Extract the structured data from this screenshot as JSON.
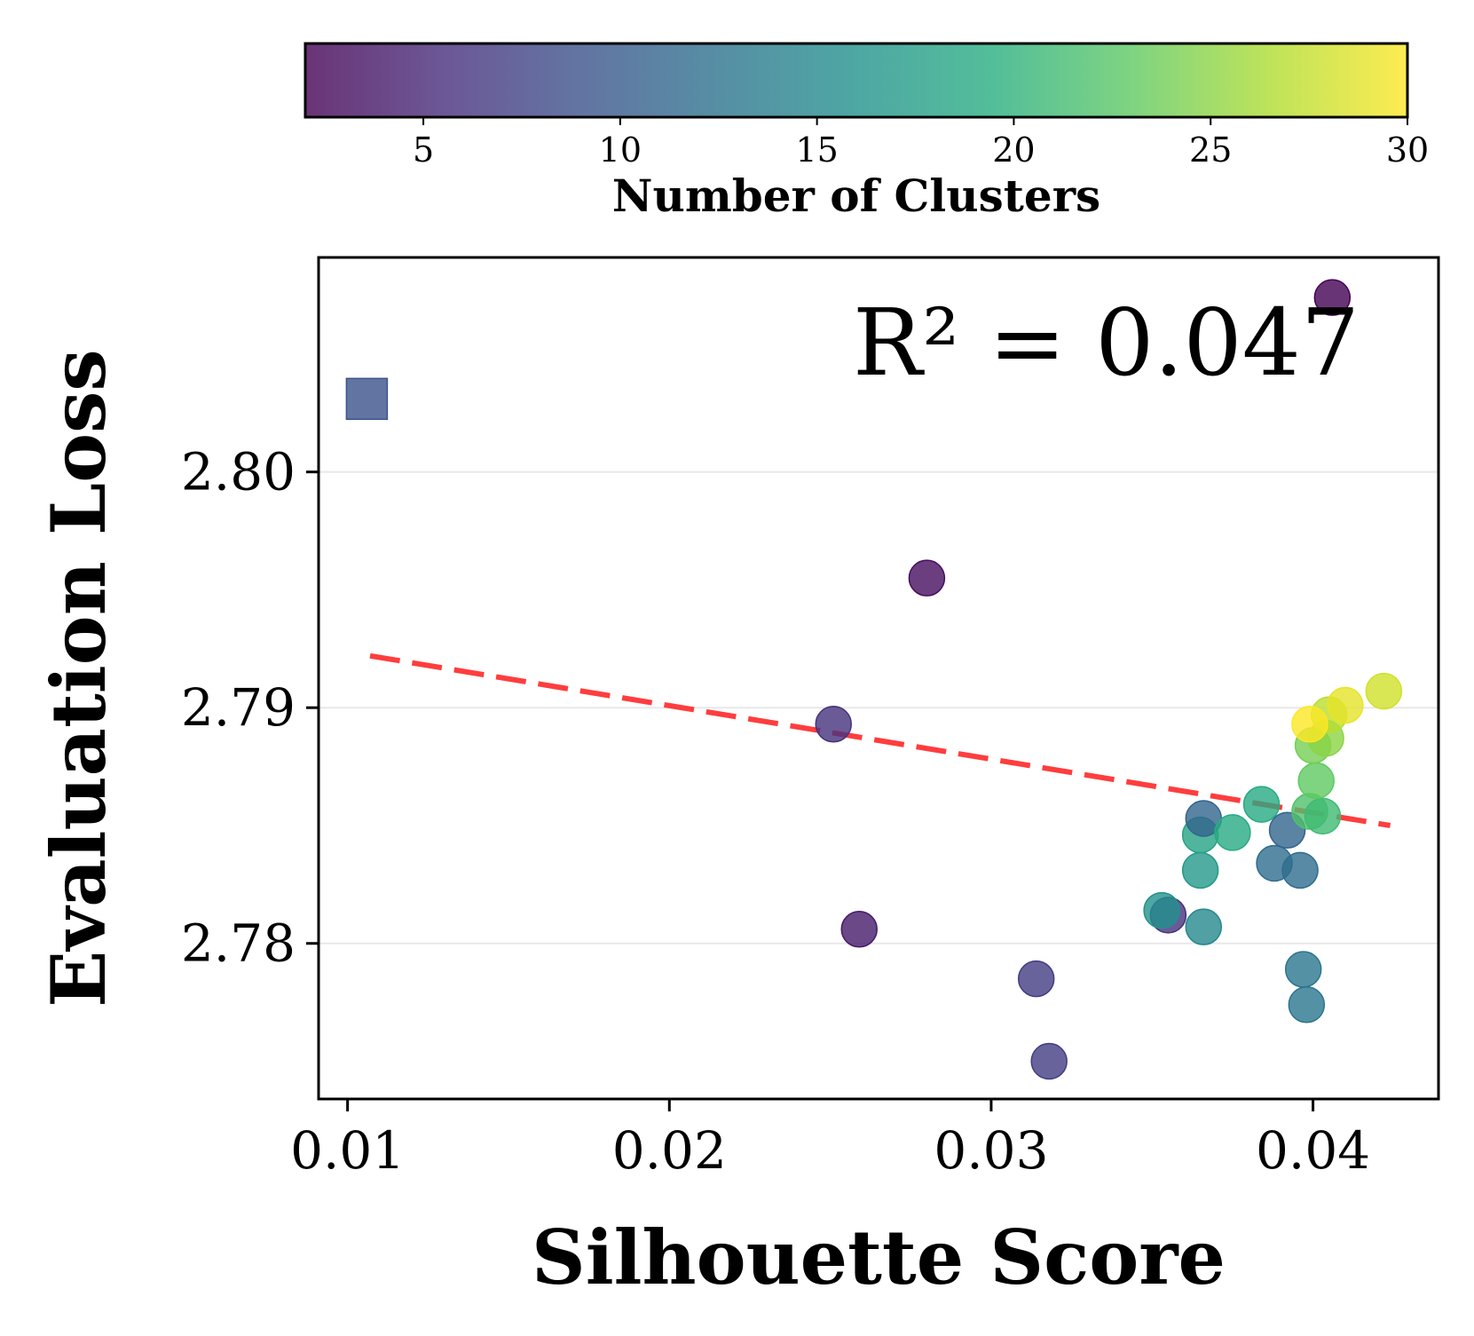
{
  "chart_data": {
    "type": "scatter",
    "title": "",
    "xlabel": "Silhouette Score",
    "ylabel": "Evaluation Loss",
    "xlim": [
      0.0091,
      0.0439
    ],
    "ylim": [
      2.7734,
      2.8091
    ],
    "xticks": [
      0.01,
      0.02,
      0.03,
      0.04
    ],
    "xtick_labels": [
      "0.01",
      "0.02",
      "0.03",
      "0.04"
    ],
    "yticks": [
      2.78,
      2.79,
      2.8
    ],
    "ytick_labels": [
      "2.78",
      "2.79",
      "2.80"
    ],
    "grid": "horizontal",
    "annotation": "R² = 0.047",
    "colorbar": {
      "label": "Number of Clusters",
      "range": [
        2,
        30
      ],
      "ticks": [
        5,
        10,
        15,
        20,
        25,
        30
      ],
      "tick_labels": [
        "5",
        "10",
        "15",
        "20",
        "25",
        "30"
      ],
      "colormap": "viridis",
      "placement": "top"
    },
    "trend_line": {
      "style": "dashed",
      "color": "#ff3333",
      "x": [
        0.0107,
        0.0424
      ],
      "y": [
        2.7922,
        2.785
      ]
    },
    "outlier_marker": {
      "shape": "square",
      "x": 0.0106,
      "y": 2.8031,
      "clusters": 9
    },
    "points": [
      {
        "x": 0.0406,
        "y": 2.8074,
        "clusters": 2
      },
      {
        "x": 0.028,
        "y": 2.7955,
        "clusters": 3
      },
      {
        "x": 0.0251,
        "y": 2.7893,
        "clusters": 6
      },
      {
        "x": 0.0259,
        "y": 2.7806,
        "clusters": 4
      },
      {
        "x": 0.0314,
        "y": 2.7785,
        "clusters": 7
      },
      {
        "x": 0.0318,
        "y": 2.775,
        "clusters": 7
      },
      {
        "x": 0.0355,
        "y": 2.7812,
        "clusters": 6
      },
      {
        "x": 0.0353,
        "y": 2.7814,
        "clusters": 16
      },
      {
        "x": 0.0366,
        "y": 2.7807,
        "clusters": 15
      },
      {
        "x": 0.0365,
        "y": 2.7831,
        "clusters": 17
      },
      {
        "x": 0.0365,
        "y": 2.7846,
        "clusters": 18
      },
      {
        "x": 0.0366,
        "y": 2.7853,
        "clusters": 11
      },
      {
        "x": 0.0375,
        "y": 2.7847,
        "clusters": 19
      },
      {
        "x": 0.0384,
        "y": 2.7859,
        "clusters": 19
      },
      {
        "x": 0.0388,
        "y": 2.7834,
        "clusters": 12
      },
      {
        "x": 0.0392,
        "y": 2.7848,
        "clusters": 11
      },
      {
        "x": 0.0396,
        "y": 2.7831,
        "clusters": 12
      },
      {
        "x": 0.0397,
        "y": 2.7789,
        "clusters": 13
      },
      {
        "x": 0.0398,
        "y": 2.7774,
        "clusters": 13
      },
      {
        "x": 0.0399,
        "y": 2.7856,
        "clusters": 22
      },
      {
        "x": 0.0403,
        "y": 2.7854,
        "clusters": 21
      },
      {
        "x": 0.0401,
        "y": 2.7869,
        "clusters": 23
      },
      {
        "x": 0.04,
        "y": 2.7884,
        "clusters": 24
      },
      {
        "x": 0.0404,
        "y": 2.7887,
        "clusters": 25
      },
      {
        "x": 0.0405,
        "y": 2.7897,
        "clusters": 27
      },
      {
        "x": 0.0399,
        "y": 2.7893,
        "clusters": 30
      },
      {
        "x": 0.041,
        "y": 2.7901,
        "clusters": 29
      },
      {
        "x": 0.0422,
        "y": 2.7907,
        "clusters": 28
      }
    ]
  }
}
